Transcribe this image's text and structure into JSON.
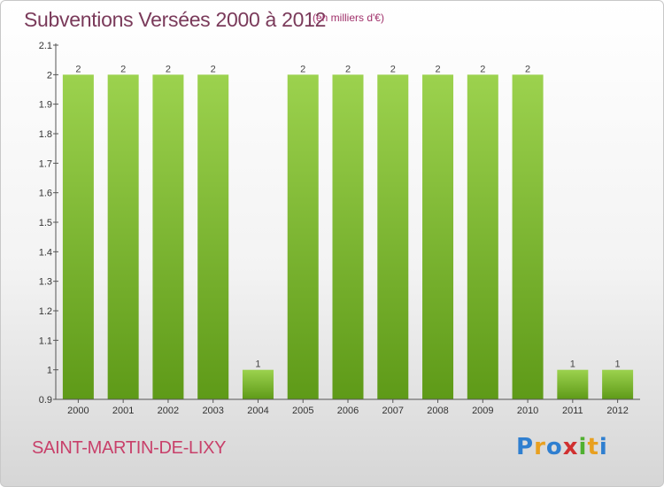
{
  "header": {
    "title": "Subventions Versées 2000 à 2012",
    "unit_note": "(en milliers d'€)"
  },
  "footer": {
    "commune": "SAINT-MARTIN-DE-LIXY",
    "logo_text": "Proxiti",
    "logo_letters": [
      {
        "char": "P",
        "color": "#2f7fd0"
      },
      {
        "char": "r",
        "color": "#e8a020"
      },
      {
        "char": "o",
        "color": "#2f7fd0"
      },
      {
        "char": "x",
        "color": "#d03030"
      },
      {
        "char": "i",
        "color": "#50b030"
      },
      {
        "char": "t",
        "color": "#e8a020"
      },
      {
        "char": "i",
        "color": "#2f7fd0"
      }
    ]
  },
  "colors": {
    "bar_top": "#9cd24e",
    "bar_bottom": "#5e9a18",
    "axis": "#555555",
    "title": "#7a3a5a",
    "commune": "#c8406a"
  },
  "chart_data": {
    "type": "bar",
    "categories": [
      "2000",
      "2001",
      "2002",
      "2003",
      "2004",
      "2005",
      "2006",
      "2007",
      "2008",
      "2009",
      "2010",
      "2011",
      "2012"
    ],
    "values": [
      2,
      2,
      2,
      2,
      1,
      2,
      2,
      2,
      2,
      2,
      2,
      1,
      1
    ],
    "data_labels": [
      "2",
      "2",
      "2",
      "2",
      "1",
      "2",
      "2",
      "2",
      "2",
      "2",
      "2",
      "1",
      "1"
    ],
    "ylim": [
      0.9,
      2.1
    ],
    "yticks": [
      0.9,
      1,
      1.1,
      1.2,
      1.3,
      1.4,
      1.5,
      1.6,
      1.7,
      1.8,
      1.9,
      2,
      2.1
    ],
    "ytick_labels": [
      "0.9",
      "1",
      "1.1",
      "1.2",
      "1.3",
      "1.4",
      "1.5",
      "1.6",
      "1.7",
      "1.8",
      "1.9",
      "2",
      "2.1"
    ],
    "grid": false,
    "legend": "none",
    "title": "Subventions Versées 2000 à 2012",
    "xlabel": "",
    "ylabel": ""
  }
}
